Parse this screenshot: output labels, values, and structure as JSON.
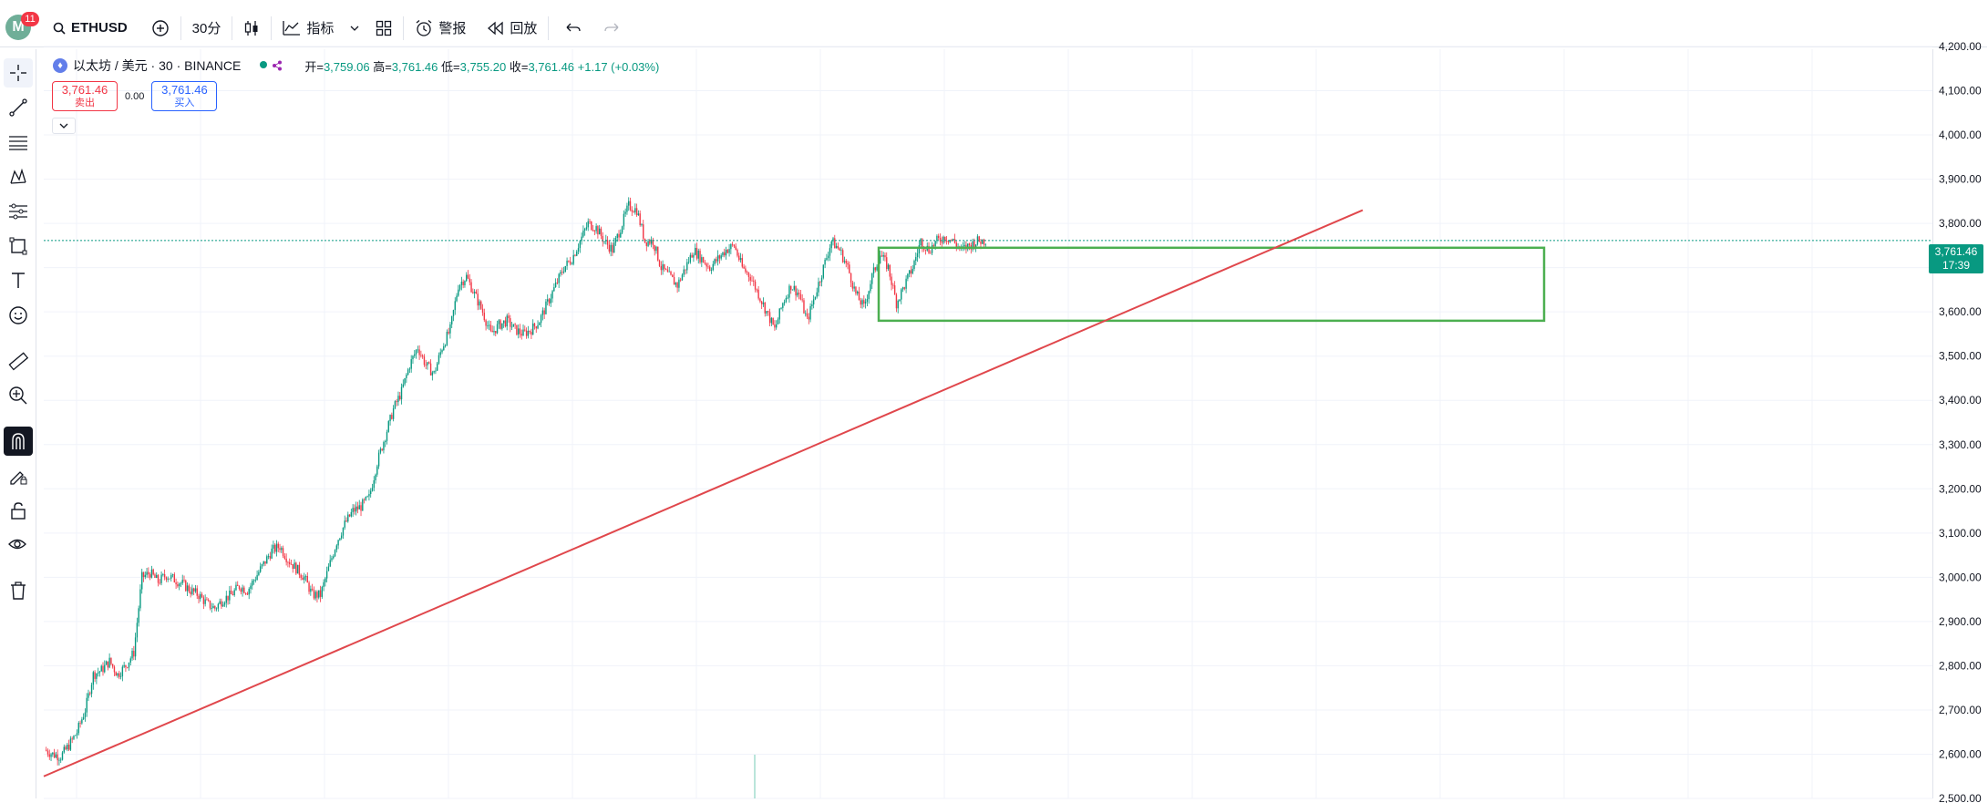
{
  "header": {
    "avatar_letter": "M",
    "notification_count": "11",
    "symbol": "ETHUSD",
    "interval": "30分",
    "indicators_label": "指标",
    "alert_label": "警报",
    "replay_label": "回放"
  },
  "legend": {
    "title": "以太坊 / 美元 · 30 · BINANCE",
    "open_label": "开=",
    "open": "3,759.06",
    "high_label": "高=",
    "high": "3,761.46",
    "low_label": "低=",
    "low": "3,755.20",
    "close_label": "收=",
    "close": "3,761.46",
    "change": "+1.17 (+0.03%)"
  },
  "trade": {
    "sell_price": "3,761.46",
    "sell_label": "卖出",
    "spread": "0.00",
    "buy_price": "3,761.46",
    "buy_label": "买入"
  },
  "price_axis": {
    "ticks": [
      "4,200.00",
      "4,100.00",
      "4,000.00",
      "3,900.00",
      "3,800.00",
      "3,700.00",
      "3,600.00",
      "3,500.00",
      "3,400.00",
      "3,300.00",
      "3,200.00",
      "3,100.00",
      "3,000.00",
      "2,900.00",
      "2,800.00",
      "2,700.00",
      "2,600.00",
      "2,500.00"
    ],
    "last_price": "3,761.46",
    "countdown": "17:39"
  },
  "colors": {
    "up": "#089981",
    "down": "#f23645",
    "trendline": "#e0474c",
    "rectangle": "#4caf50"
  },
  "chart_data": {
    "type": "candlestick",
    "ylim": [
      2500,
      4200
    ],
    "close_path": [
      2610,
      2600,
      2595,
      2620,
      2650,
      2700,
      2780,
      2790,
      2810,
      2780,
      2800,
      2830,
      3000,
      3010,
      2990,
      3005,
      2995,
      2985,
      2970,
      2960,
      2940,
      2930,
      2950,
      2960,
      2980,
      2970,
      3000,
      3030,
      3060,
      3070,
      3040,
      3020,
      3000,
      2960,
      2960,
      3020,
      3080,
      3120,
      3150,
      3160,
      3180,
      3260,
      3320,
      3380,
      3420,
      3480,
      3520,
      3480,
      3460,
      3520,
      3560,
      3660,
      3680,
      3640,
      3600,
      3550,
      3570,
      3580,
      3560,
      3550,
      3560,
      3580,
      3620,
      3660,
      3700,
      3720,
      3760,
      3800,
      3790,
      3760,
      3740,
      3790,
      3840,
      3830,
      3760,
      3760,
      3700,
      3680,
      3660,
      3700,
      3740,
      3720,
      3700,
      3720,
      3740,
      3750,
      3700,
      3680,
      3640,
      3600,
      3560,
      3620,
      3660,
      3640,
      3580,
      3640,
      3700,
      3760,
      3740,
      3700,
      3640,
      3610,
      3680,
      3730,
      3700,
      3620,
      3660,
      3700,
      3760,
      3740,
      3760,
      3770,
      3760,
      3740,
      3750,
      3760,
      3761
    ],
    "trendline": [
      [
        0,
        2550
      ],
      [
        1040,
        3830
      ]
    ],
    "range_box": {
      "top": 3745,
      "bottom": 3580
    },
    "last": 3761.46
  }
}
